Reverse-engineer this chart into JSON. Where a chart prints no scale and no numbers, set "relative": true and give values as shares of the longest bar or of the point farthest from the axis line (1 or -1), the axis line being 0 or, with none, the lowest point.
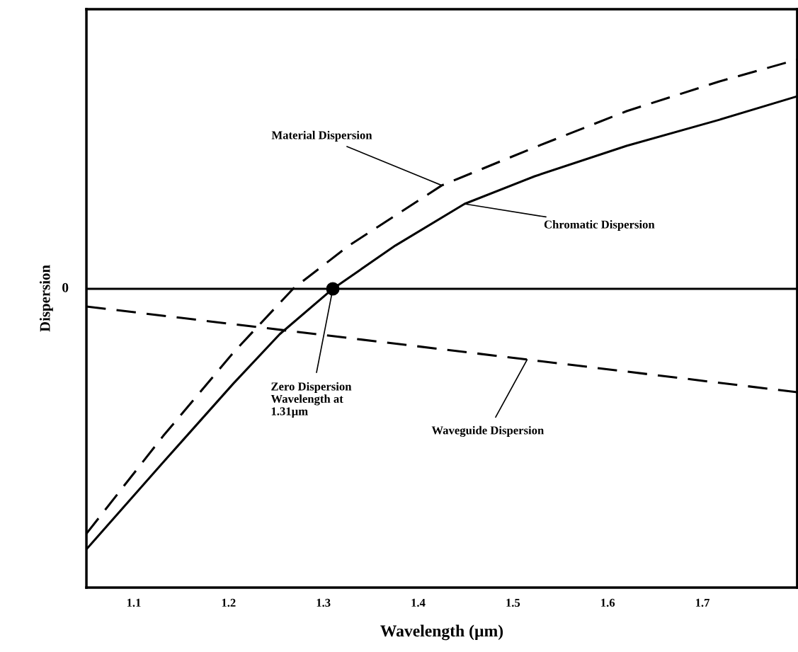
{
  "chart_data": {
    "type": "line",
    "relative": true,
    "xlabel": "Wavelength (µm)",
    "ylabel": "Dispersion",
    "xlim": [
      1.05,
      1.8
    ],
    "xticks": [
      1.1,
      1.2,
      1.3,
      1.4,
      1.5,
      1.6,
      1.7
    ],
    "tick_labels": "x",
    "grid": false,
    "ref_lines": [
      {
        "axis": "y",
        "value": 0,
        "label": "0",
        "color": "#000000",
        "line_style": "solid"
      }
    ],
    "series": [
      {
        "color": "#000000",
        "line_style": "solid",
        "x": [
          1.05,
          1.131,
          1.205,
          1.254,
          1.31,
          1.376,
          1.449,
          1.523,
          1.62,
          1.718,
          1.8
        ],
        "values": [
          -1.0,
          -0.666,
          -0.364,
          -0.174,
          0,
          0.166,
          0.326,
          0.432,
          0.549,
          0.649,
          0.739
        ]
      },
      {
        "color": "#000000",
        "line_style": "dashed",
        "x": [
          1.05,
          1.131,
          1.205,
          1.268,
          1.327,
          1.425,
          1.523,
          1.62,
          1.718,
          1.8
        ],
        "values": [
          -0.94,
          -0.565,
          -0.245,
          0,
          0.166,
          0.397,
          0.543,
          0.682,
          0.796,
          0.88
        ]
      },
      {
        "color": "#000000",
        "line_style": "dashed",
        "x": [
          1.05,
          1.425,
          1.8
        ],
        "values": [
          -0.068,
          -0.232,
          -0.397
        ]
      },
      {
        "type": "scatter",
        "marker": "circle",
        "color": "#000000",
        "x": [
          1.31
        ],
        "values": [
          0
        ]
      }
    ],
    "annotations": [
      {
        "text": "Material Dispersion",
        "x": 1.425,
        "y": 0.397
      },
      {
        "text": "Chromatic Dispersion",
        "x": 1.449,
        "y": 0.326
      },
      {
        "text": "Zero Dispersion\nWavelength at\n1.31µm",
        "x": 1.31,
        "y": 0
      },
      {
        "text": "Waveguide Dispersion",
        "x": 1.515,
        "y": -0.272
      }
    ]
  }
}
